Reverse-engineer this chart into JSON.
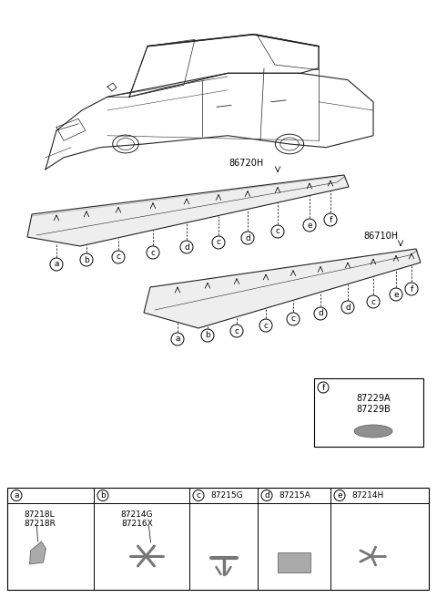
{
  "bg_color": "#ffffff",
  "line_color": "#222222",
  "part_numbers": {
    "main1": "86720H",
    "main2": "86710H",
    "a": "87218L\n87218R",
    "b": "87214G\n87216X",
    "c": "87215G",
    "d": "87215A",
    "e": "87214H",
    "f": "87229A\n87229B"
  },
  "upper_labels": [
    "a",
    "b",
    "c",
    "c",
    "d",
    "c",
    "d",
    "c",
    "e",
    "f"
  ],
  "lower_labels": [
    "a",
    "b",
    "c",
    "c",
    "c",
    "d",
    "d",
    "c",
    "e",
    "f"
  ],
  "header_labels": [
    "a",
    "b",
    "c",
    "d",
    "e"
  ],
  "header_parts": [
    "",
    "",
    "87215G",
    "87215A",
    "87214H"
  ],
  "table_col_widths": [
    95,
    105,
    75,
    80,
    90
  ]
}
